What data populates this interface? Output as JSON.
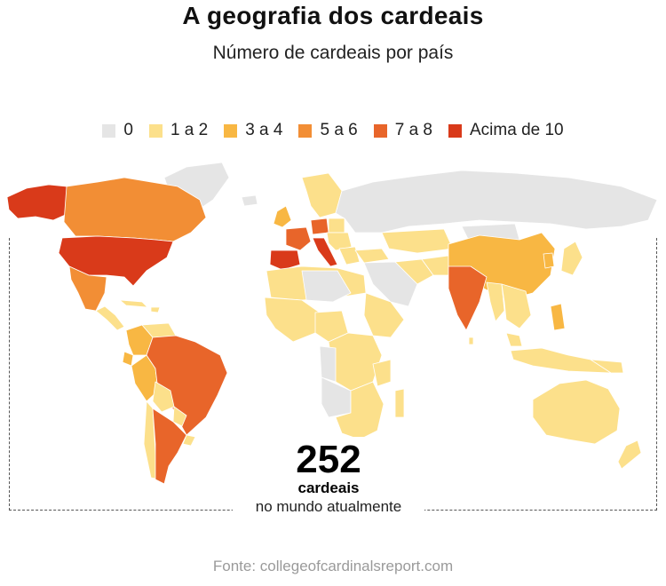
{
  "title": "A geografia dos cardeais",
  "subtitle": "Número de cardeais por país",
  "legend": [
    {
      "label": "0",
      "color": "#e5e5e5"
    },
    {
      "label": "1 a 2",
      "color": "#fce08b"
    },
    {
      "label": "3 a 4",
      "color": "#f8b743"
    },
    {
      "label": "5 a 6",
      "color": "#f28e35"
    },
    {
      "label": "7 a 8",
      "color": "#e8652a"
    },
    {
      "label": "Acima de 10",
      "color": "#d93a1a"
    }
  ],
  "total": {
    "number": "252",
    "unit": "cardeais",
    "caption": "no mundo atualmente"
  },
  "source": "Fonte: collegeofcardinalsreport.com"
}
